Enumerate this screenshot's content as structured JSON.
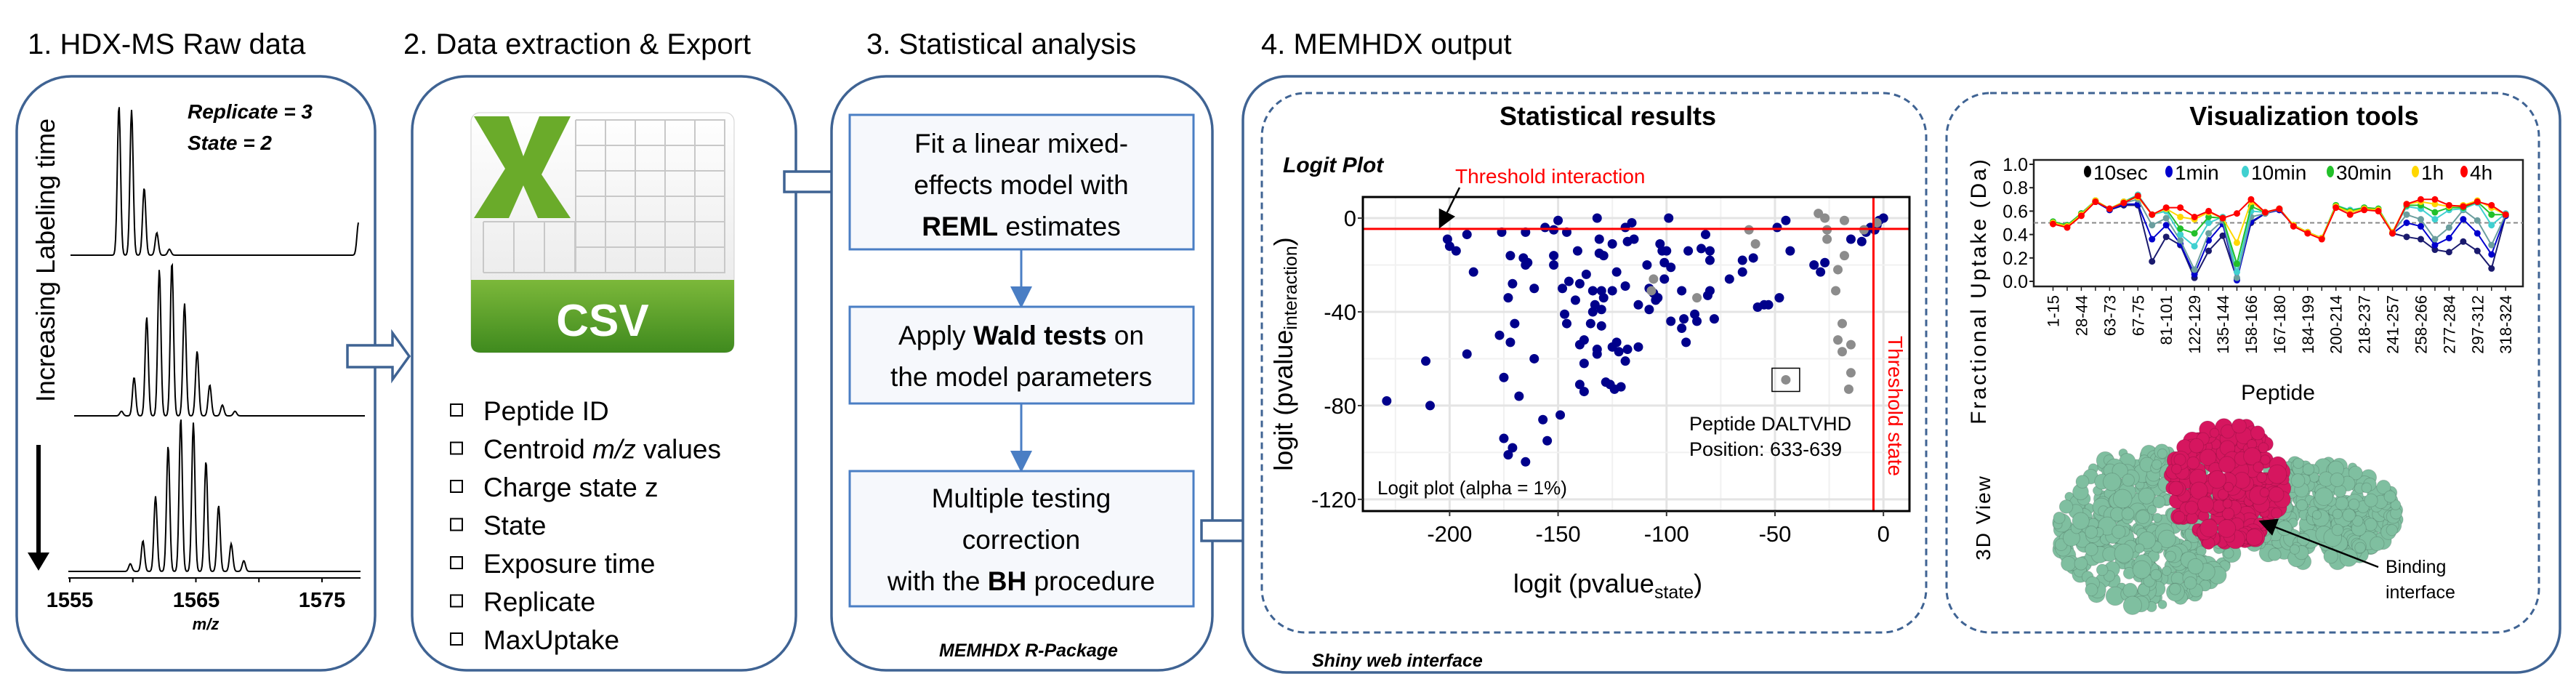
{
  "panel1": {
    "title": "1. HDX-MS Raw data",
    "vertical_label": "Increasing Labeling time",
    "replicate": "Replicate = 3",
    "state": "State = 2",
    "xticks": [
      "1555",
      "1565",
      "1575"
    ],
    "xlabel": "m/z"
  },
  "panel2": {
    "title": "2. Data extraction & Export",
    "icon_label": "CSV",
    "icon": "excel-csv-file-icon",
    "items": [
      {
        "pre": "Peptide ID",
        "ital": "",
        "post": ""
      },
      {
        "pre": "Centroid ",
        "ital": "m/z",
        "post": " values"
      },
      {
        "pre": "Charge state z",
        "ital": "",
        "post": ""
      },
      {
        "pre": "State",
        "ital": "",
        "post": ""
      },
      {
        "pre": "Exposure time",
        "ital": "",
        "post": ""
      },
      {
        "pre": "Replicate",
        "ital": "",
        "post": ""
      },
      {
        "pre": "MaxUptake",
        "ital": "",
        "post": ""
      }
    ]
  },
  "panel3": {
    "title": "3. Statistical analysis",
    "step1": {
      "l1": "Fit a linear mixed-",
      "l2": "effects model with",
      "l3_bold": "REML",
      "l3_rest": " estimates"
    },
    "step2": {
      "l1_pre": "Apply ",
      "l1_bold": "Wald tests",
      "l1_post": " on",
      "l2": "the model parameters"
    },
    "step3": {
      "l1": "Multiple testing",
      "l2": "correction",
      "l3_pre": "with the ",
      "l3_bold": "BH",
      "l3_post": " procedure"
    },
    "footer": "MEMHDX R-Package"
  },
  "panel4": {
    "title": "4. MEMHDX output",
    "footer": "Shiny web interface",
    "stats_title": "Statistical results",
    "viz_title": "Visualization tools",
    "view3d_label": "3D View",
    "binding_label_1": "Binding",
    "binding_label_2": "interface",
    "colors": {
      "target": "#d6165f",
      "protein": "#7fbfa0"
    }
  },
  "chart_data": [
    {
      "type": "line",
      "title": "",
      "xlabel": "m/z",
      "xlim": [
        1555,
        1578
      ],
      "series": [
        {
          "peaks_mz": [
            1558.9,
            1559.9,
            1560.9,
            1561.9,
            1562.9,
            1577.9
          ],
          "rel_intensity": [
            1.0,
            0.97,
            0.45,
            0.15,
            0.04,
            0.22
          ]
        },
        {
          "peaks_mz": [
            1559.1,
            1560.1,
            1561.1,
            1562.1,
            1563.1,
            1564.1,
            1565.1,
            1566.1,
            1567.1,
            1568.1
          ],
          "rel_intensity": [
            0.03,
            0.25,
            0.64,
            0.95,
            1.0,
            0.73,
            0.42,
            0.2,
            0.07,
            0.03
          ]
        },
        {
          "peaks_mz": [
            1559.8,
            1560.8,
            1561.8,
            1562.8,
            1563.8,
            1564.8,
            1565.8,
            1566.8,
            1567.8,
            1568.8
          ],
          "rel_intensity": [
            0.05,
            0.2,
            0.49,
            0.82,
            1.0,
            0.97,
            0.72,
            0.43,
            0.18,
            0.07
          ]
        }
      ]
    },
    {
      "type": "scatter",
      "title": "Logit Plot",
      "xlabel_main": "logit (pvalue",
      "xlabel_sub": "state",
      "xlabel_close": ")",
      "ylabel_main": "logit (pvalue",
      "ylabel_sub": "interaction",
      "ylabel_close": ")",
      "xlim": [
        -240,
        12
      ],
      "ylim": [
        -125,
        9
      ],
      "xticks": [
        -200,
        -150,
        -100,
        -50,
        0
      ],
      "yticks": [
        0,
        -40,
        -80,
        -120
      ],
      "grid": true,
      "threshold": -4.6,
      "threshold_interaction_label": "Threshold interaction",
      "threshold_state_label": "Threshold state",
      "note": "Logit plot (alpha = 1%)",
      "annotation_1": "Peptide DALTVHD",
      "annotation_2": "Position: 633-639",
      "highlight": [
        -45,
        -69
      ],
      "colors": {
        "significant": "#00008b",
        "nonsignificant": "#8c8c8c",
        "threshold": "#ff0000"
      },
      "significant": [
        [
          -229,
          -78
        ],
        [
          -209,
          -80
        ],
        [
          -211,
          -61
        ],
        [
          -192,
          -58
        ],
        [
          -201,
          -9
        ],
        [
          -200,
          -12
        ],
        [
          -197,
          -14
        ],
        [
          -192,
          -7
        ],
        [
          -189,
          -23
        ],
        [
          -176,
          -6
        ],
        [
          -172,
          -16
        ],
        [
          -171,
          -28
        ],
        [
          -173,
          -34
        ],
        [
          -170,
          -45
        ],
        [
          -177,
          -50
        ],
        [
          -172,
          -53
        ],
        [
          -175,
          -68
        ],
        [
          -168,
          -76
        ],
        [
          -175,
          -94
        ],
        [
          -171,
          -98
        ],
        [
          -173,
          -101
        ],
        [
          -165,
          -104
        ],
        [
          -157,
          -86
        ],
        [
          -155,
          -95
        ],
        [
          -149,
          -84
        ],
        [
          -165,
          -6
        ],
        [
          -166,
          -17
        ],
        [
          -165,
          -20
        ],
        [
          -164,
          -19
        ],
        [
          -161,
          -30
        ],
        [
          -161,
          -60
        ],
        [
          -156,
          -4
        ],
        [
          -150,
          -1
        ],
        [
          -152,
          -5
        ],
        [
          -146,
          -6
        ],
        [
          -152,
          -16
        ],
        [
          -152,
          -20
        ],
        [
          -148,
          -30
        ],
        [
          -145,
          -27
        ],
        [
          -147,
          -41
        ],
        [
          -146,
          -45
        ],
        [
          -142,
          -35
        ],
        [
          -141,
          -14
        ],
        [
          -140,
          -28
        ],
        [
          -137,
          -24
        ],
        [
          -134,
          -31
        ],
        [
          -134,
          -40
        ],
        [
          -133,
          -37
        ],
        [
          -130,
          -39
        ],
        [
          -135,
          -45
        ],
        [
          -130,
          -46
        ],
        [
          -140,
          -54
        ],
        [
          -138,
          -52
        ],
        [
          -138,
          -62
        ],
        [
          -140,
          -71
        ],
        [
          -138,
          -74
        ],
        [
          -132,
          -56
        ],
        [
          -132,
          -58
        ],
        [
          -128,
          -70
        ],
        [
          -126,
          -71
        ],
        [
          -124,
          -73
        ],
        [
          -121,
          -72
        ],
        [
          -132,
          0
        ],
        [
          -131,
          -9
        ],
        [
          -131,
          -15
        ],
        [
          -129,
          -16
        ],
        [
          -125,
          -11
        ],
        [
          -130,
          -31
        ],
        [
          -129,
          -34
        ],
        [
          -125,
          -31
        ],
        [
          -123,
          -23
        ],
        [
          -125,
          -55
        ],
        [
          -123,
          -53
        ],
        [
          -122,
          -57
        ],
        [
          -118,
          -56
        ],
        [
          -119,
          -61
        ],
        [
          -119,
          -29
        ],
        [
          -119,
          -4
        ],
        [
          -116,
          -2
        ],
        [
          -118,
          -10
        ],
        [
          -115,
          -9
        ],
        [
          -113,
          -37
        ],
        [
          -113,
          -55
        ],
        [
          -109,
          -20
        ],
        [
          -108,
          -30
        ],
        [
          -108,
          -39
        ],
        [
          -106,
          -32
        ],
        [
          -105,
          -35
        ],
        [
          -104,
          -34
        ],
        [
          -103,
          -11
        ],
        [
          -102,
          -14
        ],
        [
          -100,
          -14
        ],
        [
          -101,
          -19
        ],
        [
          -98,
          -21
        ],
        [
          -101,
          -26
        ],
        [
          -99,
          0
        ],
        [
          -98,
          -44
        ],
        [
          -93,
          -31
        ],
        [
          -92,
          -43
        ],
        [
          -93,
          -47
        ],
        [
          -91,
          -53
        ],
        [
          -90,
          -14
        ],
        [
          -87,
          -41
        ],
        [
          -86,
          -44
        ],
        [
          -84,
          -13
        ],
        [
          -82,
          -7
        ],
        [
          -80,
          -14
        ],
        [
          -80,
          -18
        ],
        [
          -81,
          -33
        ],
        [
          -80,
          -31
        ],
        [
          -78,
          -43
        ],
        [
          -71,
          -26
        ],
        [
          -65,
          -18
        ],
        [
          -65,
          -23
        ],
        [
          -60,
          -17
        ],
        [
          -58,
          -38
        ],
        [
          -55,
          -37
        ],
        [
          -53,
          -37
        ],
        [
          -48,
          -34
        ],
        [
          -49,
          -4
        ],
        [
          -45,
          -1
        ],
        [
          -43,
          -14
        ],
        [
          -32,
          -20
        ],
        [
          -29,
          -23
        ],
        [
          -27,
          -19
        ],
        [
          -15,
          -9
        ],
        [
          -10,
          -10
        ],
        [
          -8,
          -6
        ],
        [
          -6,
          -4
        ],
        [
          -4,
          -5
        ],
        [
          -3,
          -3
        ],
        [
          0,
          0
        ],
        [
          -2,
          -1
        ]
      ],
      "nonsignificant": [
        [
          -106,
          -26
        ],
        [
          -107,
          -31
        ],
        [
          -86,
          -34
        ],
        [
          -62,
          -5
        ],
        [
          -59,
          -11
        ],
        [
          -45,
          -69
        ],
        [
          -30,
          2
        ],
        [
          -27,
          0
        ],
        [
          -26,
          -5
        ],
        [
          -26,
          -9
        ],
        [
          -18,
          -1
        ],
        [
          -18,
          -16
        ],
        [
          -21,
          -22
        ],
        [
          -22,
          -31
        ],
        [
          -19,
          -45
        ],
        [
          -21,
          -52
        ],
        [
          -19,
          -57
        ],
        [
          -15,
          -54
        ],
        [
          -15,
          -66
        ],
        [
          -16,
          -73
        ],
        [
          -9,
          -5
        ],
        [
          -3,
          -2
        ]
      ]
    },
    {
      "type": "line",
      "title": "",
      "xlabel": "Peptide",
      "ylabel": "Fractional Uptake (Da)",
      "ylim": [
        0,
        1.0
      ],
      "yticks": [
        "0.0",
        "0.2",
        "0.4",
        "0.6",
        "0.8",
        "1.0"
      ],
      "reference_line": 0.5,
      "categories": [
        "1-15",
        "",
        "28-44",
        "",
        "63-73",
        "",
        "67-75",
        "",
        "81-101",
        "",
        "122-129",
        "",
        "135-144",
        "",
        "158-166",
        "",
        "167-180",
        "",
        "184-199",
        "",
        "200-214",
        "",
        "218-237",
        "",
        "241-257",
        "",
        "258-266",
        "",
        "277-284",
        "",
        "297-312",
        "",
        "318-324"
      ],
      "legend_position": "top",
      "series": [
        {
          "name": "10sec",
          "color": "#1a1a6e",
          "values": [
            0.5,
            0.47,
            0.57,
            0.68,
            0.61,
            0.65,
            0.65,
            0.17,
            0.38,
            0.31,
            0.03,
            0.26,
            0.39,
            0.02,
            0.5,
            0.58,
            0.61,
            0.48,
            0.42,
            0.37,
            0.64,
            0.59,
            0.62,
            0.61,
            0.41,
            0.38,
            0.36,
            0.27,
            0.25,
            0.34,
            0.26,
            0.11,
            0.56
          ]
        },
        {
          "name": "1min",
          "color": "#0000cd",
          "values": [
            0.5,
            0.47,
            0.57,
            0.68,
            0.61,
            0.66,
            0.66,
            0.36,
            0.48,
            0.32,
            0.06,
            0.35,
            0.49,
            0.01,
            0.51,
            0.58,
            0.61,
            0.48,
            0.42,
            0.37,
            0.64,
            0.59,
            0.62,
            0.61,
            0.41,
            0.5,
            0.47,
            0.31,
            0.37,
            0.53,
            0.41,
            0.23,
            0.56
          ]
        },
        {
          "name": "",
          "color": "#6b9e9e",
          "values": [
            0.51,
            0.47,
            0.58,
            0.69,
            0.62,
            0.67,
            0.7,
            0.48,
            0.54,
            0.35,
            0.1,
            0.41,
            0.52,
            0.03,
            0.55,
            0.58,
            0.62,
            0.48,
            0.42,
            0.37,
            0.64,
            0.6,
            0.62,
            0.61,
            0.42,
            0.57,
            0.53,
            0.36,
            0.46,
            0.61,
            0.52,
            0.31,
            0.57
          ]
        },
        {
          "name": "10min",
          "color": "#40d0d0",
          "values": [
            0.51,
            0.48,
            0.58,
            0.69,
            0.62,
            0.68,
            0.74,
            0.57,
            0.6,
            0.4,
            0.3,
            0.5,
            0.55,
            0.08,
            0.6,
            0.59,
            0.62,
            0.48,
            0.42,
            0.37,
            0.65,
            0.61,
            0.63,
            0.62,
            0.42,
            0.64,
            0.62,
            0.53,
            0.61,
            0.62,
            0.67,
            0.48,
            0.58
          ]
        },
        {
          "name": "30min",
          "color": "#22c02a",
          "values": [
            0.51,
            0.48,
            0.58,
            0.69,
            0.62,
            0.68,
            0.73,
            0.57,
            0.62,
            0.45,
            0.41,
            0.55,
            0.54,
            0.15,
            0.64,
            0.59,
            0.62,
            0.48,
            0.42,
            0.37,
            0.65,
            0.6,
            0.63,
            0.62,
            0.42,
            0.65,
            0.65,
            0.59,
            0.63,
            0.63,
            0.68,
            0.57,
            0.57
          ]
        },
        {
          "name": "1h",
          "color": "#ffd700",
          "values": [
            0.5,
            0.47,
            0.57,
            0.69,
            0.62,
            0.68,
            0.72,
            0.57,
            0.62,
            0.55,
            0.53,
            0.59,
            0.54,
            0.33,
            0.68,
            0.59,
            0.62,
            0.48,
            0.42,
            0.37,
            0.64,
            0.59,
            0.62,
            0.61,
            0.42,
            0.66,
            0.68,
            0.66,
            0.64,
            0.65,
            0.69,
            0.63,
            0.57
          ]
        },
        {
          "name": "4h",
          "color": "#ff0000",
          "values": [
            0.49,
            0.46,
            0.56,
            0.68,
            0.62,
            0.67,
            0.73,
            0.57,
            0.63,
            0.63,
            0.55,
            0.6,
            0.54,
            0.58,
            0.7,
            0.59,
            0.62,
            0.47,
            0.41,
            0.36,
            0.63,
            0.57,
            0.61,
            0.6,
            0.41,
            0.66,
            0.7,
            0.7,
            0.65,
            0.64,
            0.68,
            0.65,
            0.57
          ]
        }
      ]
    }
  ]
}
